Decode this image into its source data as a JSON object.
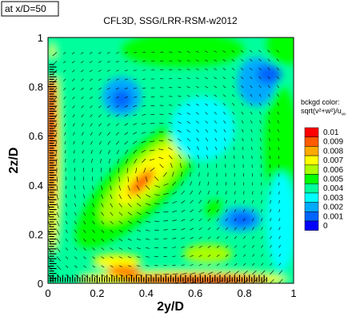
{
  "chart_data": {
    "type": "heatmap",
    "title": "CFL3D, SSG/LRR-RSM-w2012",
    "location_box": "at x/D=50",
    "xlabel": "2y/D",
    "ylabel": "2z/D",
    "xlim": [
      0,
      1
    ],
    "ylim": [
      0,
      1
    ],
    "x_ticks": [
      "0",
      "0.2",
      "0.4",
      "0.6",
      "0.8",
      "1"
    ],
    "y_ticks": [
      "0",
      "0.2",
      "0.4",
      "0.6",
      "0.8",
      "1"
    ],
    "x_tick_values": [
      0,
      0.2,
      0.4,
      0.6,
      0.8,
      1
    ],
    "y_tick_values": [
      0,
      0.2,
      0.4,
      0.6,
      0.8,
      1
    ],
    "grid": false,
    "vectors_overlay": true,
    "legend": {
      "title_line1": "bckgd color:",
      "title_line2": "sqrt(v²+w²)/u",
      "title_subscript": "∞",
      "placement": "right",
      "levels": [
        "0.01",
        "0.009",
        "0.008",
        "0.007",
        "0.006",
        "0.005",
        "0.004",
        "0.003",
        "0.002",
        "0.001",
        "0"
      ],
      "colors": [
        "#ff0000",
        "#ff5a00",
        "#ffaa00",
        "#ffff00",
        "#aaff00",
        "#00ff00",
        "#00ff9c",
        "#00ffff",
        "#00aaff",
        "#0064ff",
        "#0000ff"
      ]
    },
    "contour_blobs": [
      {
        "cx": 0.02,
        "cy": 0.5,
        "rx": 0.05,
        "ry": 0.52,
        "level": 0.0045
      },
      {
        "cx": 0.5,
        "cy": 0.02,
        "rx": 0.52,
        "ry": 0.05,
        "level": 0.0045
      },
      {
        "cx": 0.015,
        "cy": 0.55,
        "rx": 0.032,
        "ry": 0.42,
        "level": 0.007
      },
      {
        "cx": 0.55,
        "cy": 0.015,
        "rx": 0.42,
        "ry": 0.032,
        "level": 0.007
      },
      {
        "cx": 0.012,
        "cy": 0.6,
        "rx": 0.022,
        "ry": 0.3,
        "level": 0.0095
      },
      {
        "cx": 0.6,
        "cy": 0.012,
        "rx": 0.3,
        "ry": 0.022,
        "level": 0.0095
      },
      {
        "cx": 0.01,
        "cy": 0.7,
        "rx": 0.014,
        "ry": 0.15,
        "level": 0.0105
      },
      {
        "cx": 0.66,
        "cy": 0.01,
        "rx": 0.15,
        "ry": 0.014,
        "level": 0.0105
      },
      {
        "cx": 0.03,
        "cy": 0.88,
        "rx": 0.1,
        "ry": 0.05,
        "level": 0.0045
      },
      {
        "cx": 0.38,
        "cy": 0.41,
        "rx": 0.36,
        "ry": 0.12,
        "angle": 45,
        "level": 0.0055
      },
      {
        "cx": 0.4,
        "cy": 0.43,
        "rx": 0.25,
        "ry": 0.08,
        "angle": 45,
        "level": 0.0065
      },
      {
        "cx": 0.4,
        "cy": 0.44,
        "rx": 0.16,
        "ry": 0.05,
        "angle": 45,
        "level": 0.0075
      },
      {
        "cx": 0.38,
        "cy": 0.41,
        "rx": 0.07,
        "ry": 0.025,
        "angle": 45,
        "level": 0.0085
      },
      {
        "cx": 0.28,
        "cy": 0.09,
        "rx": 0.1,
        "ry": 0.03,
        "level": 0.0075
      },
      {
        "cx": 0.31,
        "cy": 0.05,
        "rx": 0.07,
        "ry": 0.02,
        "level": 0.0085
      },
      {
        "cx": 0.65,
        "cy": 0.12,
        "rx": 0.1,
        "ry": 0.04,
        "level": 0.0065
      },
      {
        "cx": 0.78,
        "cy": 0.26,
        "rx": 0.09,
        "ry": 0.05,
        "level": 0.0025
      },
      {
        "cx": 0.79,
        "cy": 0.26,
        "rx": 0.05,
        "ry": 0.03,
        "level": 0.0015
      },
      {
        "cx": 0.68,
        "cy": 0.3,
        "rx": 0.04,
        "ry": 0.04,
        "level": 0.0055
      },
      {
        "cx": 0.3,
        "cy": 0.76,
        "rx": 0.08,
        "ry": 0.08,
        "level": 0.0025
      },
      {
        "cx": 0.3,
        "cy": 0.75,
        "rx": 0.04,
        "ry": 0.04,
        "level": 0.0015
      },
      {
        "cx": 0.85,
        "cy": 0.82,
        "rx": 0.08,
        "ry": 0.1,
        "level": 0.0025
      },
      {
        "cx": 0.9,
        "cy": 0.85,
        "rx": 0.05,
        "ry": 0.04,
        "level": 0.0015
      },
      {
        "cx": 0.63,
        "cy": 0.63,
        "rx": 0.13,
        "ry": 0.13,
        "level": 0.0032
      },
      {
        "cx": 0.55,
        "cy": 0.95,
        "rx": 0.25,
        "ry": 0.07,
        "level": 0.0052
      },
      {
        "cx": 0.95,
        "cy": 0.55,
        "rx": 0.07,
        "ry": 0.25,
        "level": 0.0052
      },
      {
        "cx": 0.97,
        "cy": 0.97,
        "rx": 0.08,
        "ry": 0.08,
        "level": 0.0052
      },
      {
        "cx": 0.95,
        "cy": 0.25,
        "rx": 0.06,
        "ry": 0.2,
        "level": 0.0035
      }
    ]
  }
}
